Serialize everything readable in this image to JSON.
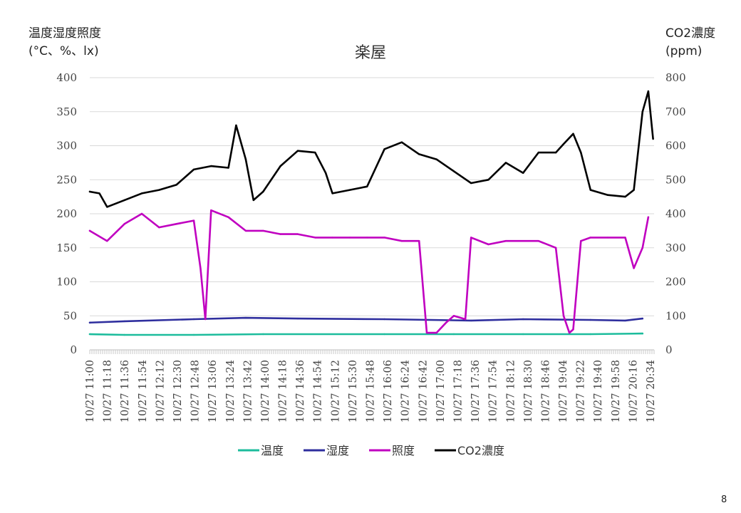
{
  "chart_data": {
    "type": "line",
    "title": "楽屋",
    "y_left_label": "温度湿度照度\n(°C、%、lx)",
    "y_right_label": "CO2濃度\n(ppm)",
    "y_left_ticks": [
      0,
      50,
      100,
      150,
      200,
      250,
      300,
      350,
      400
    ],
    "y_right_ticks": [
      0,
      100,
      200,
      300,
      400,
      500,
      600,
      700,
      800
    ],
    "ylim_left": [
      0,
      400
    ],
    "ylim_right": [
      0,
      800
    ],
    "x_tick_labels": [
      "10/27 11:00",
      "10/27 11:18",
      "10/27 11:36",
      "10/27 11:54",
      "10/27 12:12",
      "10/27 12:30",
      "10/27 12:48",
      "10/27 13:06",
      "10/27 13:24",
      "10/27 13:42",
      "10/27 14:00",
      "10/27 14:18",
      "10/27 14:36",
      "10/27 14:54",
      "10/27 15:12",
      "10/27 15:30",
      "10/27 15:48",
      "10/27 16:06",
      "10/27 16:24",
      "10/27 16:42",
      "10/27 17:00",
      "10/27 17:18",
      "10/27 17:36",
      "10/27 17:54",
      "10/27 18:12",
      "10/27 18:30",
      "10/27 18:46",
      "10/27 19:04",
      "10/27 19:22",
      "10/27 19:40",
      "10/27 19:58",
      "10/27 20:16",
      "10/27 20:34"
    ],
    "grid": true,
    "legend_position": "bottom",
    "series": [
      {
        "name": "温度",
        "axis": "left",
        "color": "#1cbc9c",
        "x": [
          "10/27 11:00",
          "10/27 11:36",
          "10/27 12:48",
          "10/27 14:00",
          "10/27 16:06",
          "10/27 17:18",
          "10/27 18:30",
          "10/27 19:40",
          "10/27 20:34"
        ],
        "y": [
          23,
          22,
          22,
          23,
          23,
          23,
          23,
          23,
          24
        ]
      },
      {
        "name": "湿度",
        "axis": "left",
        "color": "#2e2e9e",
        "x": [
          "10/27 11:00",
          "10/27 11:36",
          "10/27 12:48",
          "10/27 13:42",
          "10/27 14:36",
          "10/27 16:06",
          "10/27 17:36",
          "10/27 18:30",
          "10/27 19:40",
          "10/27 20:16",
          "10/27 20:34"
        ],
        "y": [
          40,
          42,
          45,
          47,
          46,
          45,
          43,
          45,
          44,
          43,
          46
        ]
      },
      {
        "name": "照度",
        "axis": "left",
        "color": "#c000c0",
        "x": [
          "10/27 11:00",
          "10/27 11:18",
          "10/27 11:36",
          "10/27 11:54",
          "10/27 12:12",
          "10/27 12:30",
          "10/27 12:48",
          "10/27 12:55",
          "10/27 13:00",
          "10/27 13:06",
          "10/27 13:24",
          "10/27 13:42",
          "10/27 14:00",
          "10/27 14:18",
          "10/27 14:36",
          "10/27 14:54",
          "10/27 15:12",
          "10/27 15:30",
          "10/27 15:48",
          "10/27 16:06",
          "10/27 16:24",
          "10/27 16:42",
          "10/27 16:50",
          "10/27 17:00",
          "10/27 17:10",
          "10/27 17:18",
          "10/27 17:30",
          "10/27 17:36",
          "10/27 17:54",
          "10/27 18:12",
          "10/27 18:30",
          "10/27 18:46",
          "10/27 19:04",
          "10/27 19:12",
          "10/27 19:18",
          "10/27 19:22",
          "10/27 19:30",
          "10/27 19:40",
          "10/27 19:58",
          "10/27 20:16",
          "10/27 20:25",
          "10/27 20:34",
          "10/27 20:40"
        ],
        "y": [
          175,
          160,
          185,
          200,
          180,
          185,
          190,
          120,
          45,
          205,
          195,
          175,
          175,
          170,
          170,
          165,
          165,
          165,
          165,
          165,
          160,
          160,
          25,
          25,
          40,
          50,
          45,
          165,
          155,
          160,
          160,
          160,
          150,
          50,
          25,
          30,
          160,
          165,
          165,
          165,
          120,
          150,
          195
        ]
      },
      {
        "name": "CO2濃度",
        "axis": "right",
        "color": "#000000",
        "x": [
          "10/27 11:00",
          "10/27 11:10",
          "10/27 11:18",
          "10/27 11:36",
          "10/27 11:54",
          "10/27 12:12",
          "10/27 12:30",
          "10/27 12:48",
          "10/27 13:06",
          "10/27 13:24",
          "10/27 13:32",
          "10/27 13:42",
          "10/27 13:50",
          "10/27 14:00",
          "10/27 14:18",
          "10/27 14:36",
          "10/27 14:54",
          "10/27 15:05",
          "10/27 15:12",
          "10/27 15:30",
          "10/27 15:48",
          "10/27 16:06",
          "10/27 16:24",
          "10/27 16:42",
          "10/27 17:00",
          "10/27 17:18",
          "10/27 17:36",
          "10/27 17:54",
          "10/27 18:12",
          "10/27 18:30",
          "10/27 18:46",
          "10/27 19:04",
          "10/27 19:12",
          "10/27 19:22",
          "10/27 19:30",
          "10/27 19:40",
          "10/27 19:58",
          "10/27 20:16",
          "10/27 20:25",
          "10/27 20:34",
          "10/27 20:40",
          "10/27 20:45"
        ],
        "y": [
          465,
          460,
          420,
          440,
          460,
          470,
          485,
          530,
          540,
          535,
          660,
          560,
          440,
          465,
          540,
          585,
          580,
          520,
          460,
          470,
          480,
          590,
          610,
          575,
          560,
          525,
          490,
          500,
          550,
          520,
          580,
          580,
          605,
          635,
          580,
          470,
          455,
          450,
          470,
          700,
          760,
          620
        ]
      }
    ]
  },
  "page_number": "8"
}
